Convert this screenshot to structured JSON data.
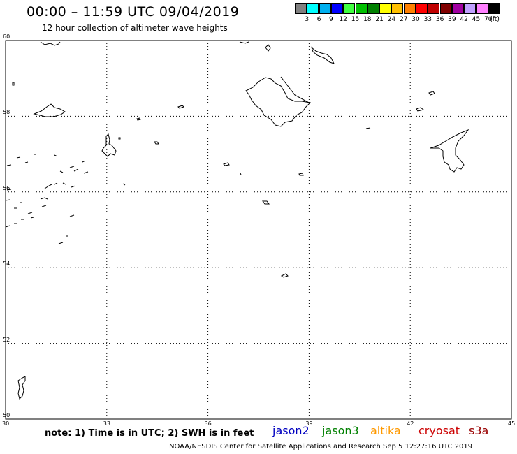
{
  "header": {
    "title": "00:00 – 11:59 UTC 09/04/2019",
    "subtitle": "12 hour collection of altimeter wave heights"
  },
  "legend": {
    "unit": "(ft)",
    "bins": [
      {
        "label": "3",
        "color": "#808080"
      },
      {
        "label": "6",
        "color": "#00ffff"
      },
      {
        "label": "9",
        "color": "#00b0f0"
      },
      {
        "label": "12",
        "color": "#0000ff"
      },
      {
        "label": "15",
        "color": "#40ff40"
      },
      {
        "label": "18",
        "color": "#00c000"
      },
      {
        "label": "21",
        "color": "#008000"
      },
      {
        "label": "24",
        "color": "#ffff00"
      },
      {
        "label": "27",
        "color": "#ffc000"
      },
      {
        "label": "30",
        "color": "#ff8000"
      },
      {
        "label": "33",
        "color": "#ff0000"
      },
      {
        "label": "36",
        "color": "#c00000"
      },
      {
        "label": "39",
        "color": "#800000"
      },
      {
        "label": "42",
        "color": "#a000a0"
      },
      {
        "label": "45",
        "color": "#c0a0ff"
      },
      {
        "label": "70",
        "color": "#ff80ff"
      },
      {
        "label": "",
        "color": "#000000"
      }
    ]
  },
  "map": {
    "lon_range": [
      30,
      45
    ],
    "lat_range": [
      50,
      60
    ],
    "lon_ticks": [
      "30",
      "33",
      "36",
      "39",
      "42",
      "45"
    ],
    "lat_ticks": [
      "50",
      "52",
      "54",
      "56",
      "58",
      "60"
    ],
    "grid": true
  },
  "note": "note: 1) Time is in UTC; 2) SWH is in feet",
  "satellites": [
    {
      "name": "jason2",
      "color": "#0000c0"
    },
    {
      "name": "jason3",
      "color": "#008000"
    },
    {
      "name": "altika",
      "color": "#ff9900"
    },
    {
      "name": "cryosat",
      "color": "#cc0000"
    },
    {
      "name": "s3a",
      "color": "#990000"
    }
  ],
  "footer": "NOAA/NESDIS Center for Satellite Applications and Research    Sep  5 12:27:16 UTC 2019"
}
